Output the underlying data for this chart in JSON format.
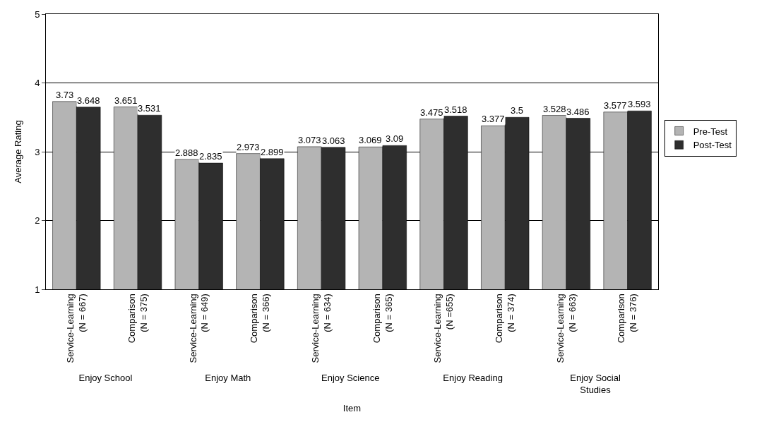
{
  "chart_data": {
    "type": "bar",
    "ylabel": "Average Rating",
    "xlabel": "Item",
    "categories": [
      "Service-Learning (N = 667)",
      "Comparison (N = 375)",
      "Service-Learning (N = 649)",
      "Comparison (N = 366)",
      "Service-Learning (N = 634)",
      "Comparison (N = 365)",
      "Service-Learning (N =655)",
      "Comparison (N = 374)",
      "Service-Learning (N = 663)",
      "Comparison (N = 376)"
    ],
    "series": [
      {
        "name": "Pre-Test",
        "color": "#b4b4b4",
        "values": [
          3.73,
          3.651,
          2.888,
          2.973,
          3.073,
          3.069,
          3.475,
          3.377,
          3.528,
          3.577
        ]
      },
      {
        "name": "Post-Test",
        "color": "#2e2e2e",
        "values": [
          3.648,
          3.531,
          2.835,
          2.899,
          3.063,
          3.09,
          3.518,
          3.5,
          3.486,
          3.593
        ]
      }
    ],
    "annotations": [
      "Enjoy School",
      "Enjoy Math",
      "Enjoy Science",
      "Enjoy Reading",
      "Enjoy Social Studies"
    ],
    "ylim": [
      1,
      5
    ],
    "yticks": [
      1,
      2,
      3,
      4,
      5
    ],
    "grid": "y",
    "legend": "right",
    "data_labels": true
  }
}
